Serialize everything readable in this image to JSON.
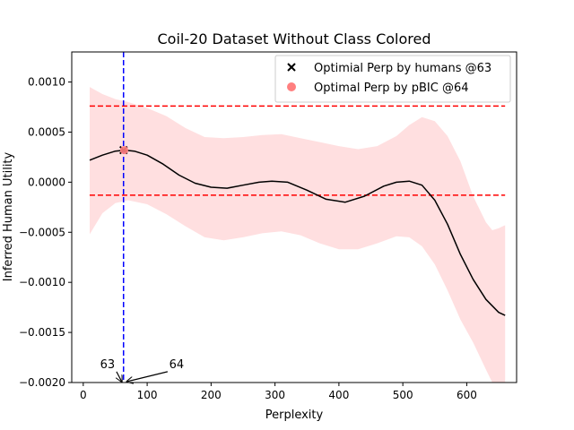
{
  "chart_data": {
    "type": "line",
    "title": "Coil-20 Dataset Without Class Colored",
    "xlabel": "Perplexity",
    "ylabel": "Inferred Human Utility",
    "xlim": [
      -18,
      678
    ],
    "ylim": [
      -0.002,
      0.0013
    ],
    "xticks": [
      0,
      100,
      200,
      300,
      400,
      500,
      600
    ],
    "xtick_labels": [
      "0",
      "100",
      "200",
      "300",
      "400",
      "500",
      "600"
    ],
    "yticks": [
      -0.002,
      -0.0015,
      -0.001,
      -0.0005,
      0.0,
      0.0005,
      0.001
    ],
    "ytick_labels": [
      "−0.0020",
      "−0.0015",
      "−0.0010",
      "−0.0005",
      "0.0000",
      "0.0005",
      "0.0010"
    ],
    "grid": false,
    "legend_position": "top-right",
    "series": [
      {
        "name": "",
        "kind": "line",
        "color": "#000000",
        "x": [
          10,
          30,
          50,
          65,
          80,
          100,
          125,
          150,
          175,
          200,
          225,
          250,
          275,
          295,
          320,
          350,
          380,
          410,
          440,
          470,
          490,
          510,
          530,
          550,
          570,
          590,
          610,
          630,
          650,
          660
        ],
        "y": [
          0.00022,
          0.00027,
          0.00031,
          0.00032,
          0.00031,
          0.00027,
          0.00018,
          7e-05,
          -1e-05,
          -5e-05,
          -6e-05,
          -3e-05,
          0.0,
          1e-05,
          0.0,
          -8e-05,
          -0.00017,
          -0.0002,
          -0.00014,
          -4e-05,
          0.0,
          1e-05,
          -3e-05,
          -0.00018,
          -0.00042,
          -0.00072,
          -0.00097,
          -0.00117,
          -0.0013,
          -0.00133
        ]
      },
      {
        "name": "",
        "kind": "band",
        "color": "#ffdfe0",
        "x": [
          10,
          30,
          50,
          70,
          100,
          130,
          160,
          190,
          220,
          250,
          280,
          310,
          340,
          370,
          400,
          430,
          460,
          490,
          510,
          530,
          550,
          570,
          590,
          610,
          630,
          640,
          650,
          660
        ],
        "upper": [
          0.00095,
          0.00088,
          0.00083,
          0.0008,
          0.00074,
          0.00066,
          0.00054,
          0.00045,
          0.00044,
          0.00045,
          0.00047,
          0.00048,
          0.00044,
          0.0004,
          0.00036,
          0.00033,
          0.00036,
          0.00046,
          0.00057,
          0.00065,
          0.00061,
          0.00046,
          0.00021,
          -0.00014,
          -0.0004,
          -0.00048,
          -0.00046,
          -0.00043
        ],
        "lower": [
          -0.00052,
          -0.00031,
          -0.00021,
          -0.00018,
          -0.00022,
          -0.00032,
          -0.00044,
          -0.00055,
          -0.00058,
          -0.00055,
          -0.00051,
          -0.00049,
          -0.00053,
          -0.00061,
          -0.00067,
          -0.00067,
          -0.00061,
          -0.00054,
          -0.00055,
          -0.00064,
          -0.00082,
          -0.00108,
          -0.00137,
          -0.0016,
          -0.00187,
          -0.002,
          -0.002,
          -0.002
        ]
      }
    ],
    "hlines": [
      {
        "y": 0.00076,
        "color": "#ff0000",
        "style": "dashed"
      },
      {
        "y": -0.00013,
        "color": "#ff0000",
        "style": "dashed"
      }
    ],
    "vlines": [
      {
        "x": 63,
        "color": "#0000ff",
        "style": "dashed"
      }
    ],
    "markers": [
      {
        "label": "Optimial Perp by humans @63",
        "x": 63,
        "y": 0.00032,
        "marker": "x",
        "color": "#000000"
      },
      {
        "label": "Optimal Perp by pBIC @64",
        "x": 64,
        "y": 0.00032,
        "marker": "o",
        "color": "#ff7f7f"
      }
    ],
    "annotations": [
      {
        "text": "63",
        "x": 38,
        "y": -0.00182,
        "arrow_to": [
          63,
          -0.002
        ]
      },
      {
        "text": "64",
        "x": 146,
        "y": -0.00182,
        "arrow_to": [
          64,
          -0.002
        ]
      }
    ]
  }
}
